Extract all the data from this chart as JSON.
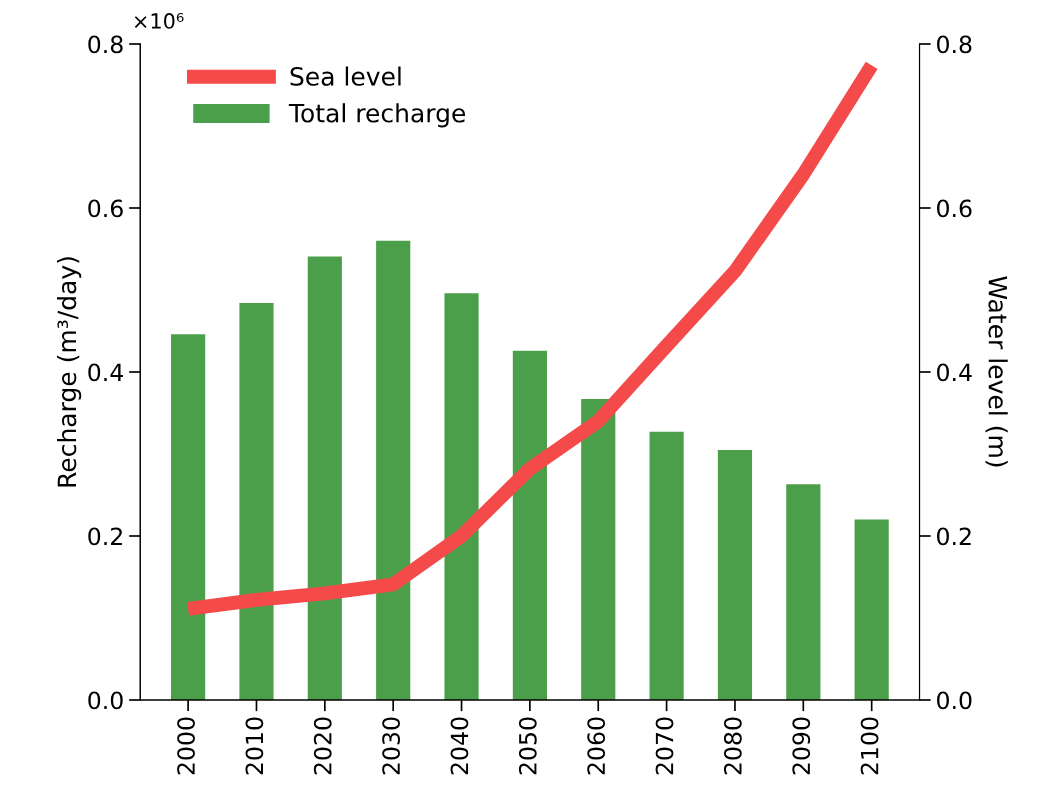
{
  "chart_data": {
    "type": "bar",
    "ylabel": "Recharge (m³/day)",
    "y2label": "Water level (m)",
    "categories": [
      "2000",
      "2010",
      "2020",
      "2030",
      "2040",
      "2050",
      "2060",
      "2070",
      "2080",
      "2090",
      "2100"
    ],
    "series": [
      {
        "name": "Total recharge",
        "color": "#4b9f4b",
        "values": [
          0.446,
          0.484,
          0.541,
          0.56,
          0.496,
          0.426,
          0.367,
          0.327,
          0.305,
          0.263,
          0.22
        ]
      },
      {
        "name": "Sea level",
        "type": "line",
        "axis": "y2",
        "color": "#f44a4a",
        "values": [
          0.111,
          0.122,
          0.13,
          0.141,
          0.2,
          0.282,
          0.34,
          0.432,
          0.523,
          0.641,
          0.774
        ]
      }
    ],
    "ylim": [
      0,
      0.8
    ],
    "yticks": [
      {
        "value": 0,
        "label": "0.0"
      },
      0.2,
      0.4,
      0.6,
      0.8
    ],
    "y2lim": [
      0,
      0.8
    ],
    "y2ticks": [
      {
        "value": 0,
        "label": "0.0"
      },
      0.2,
      0.4,
      0.6,
      0.8
    ],
    "annotations": [
      "×10⁶"
    ],
    "legend": "top left",
    "grid": false
  }
}
